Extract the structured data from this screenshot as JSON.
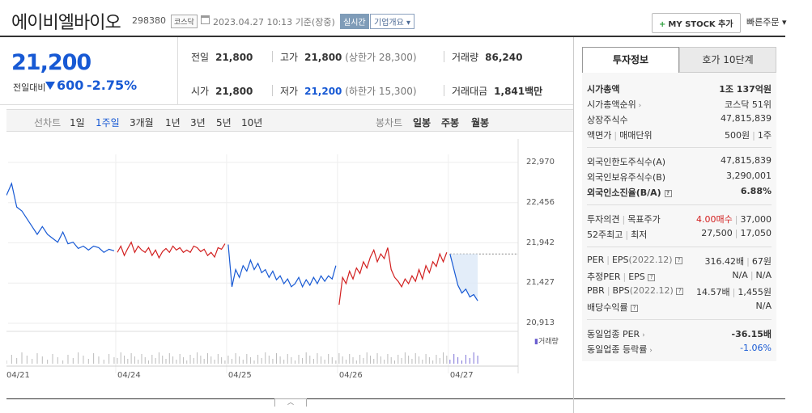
{
  "header": {
    "name": "에이비엘바이오",
    "code": "298380",
    "market": "코스닥",
    "datetime": "2023.04.27 10:13",
    "basis": "기준(장중)",
    "realtime": "실시간",
    "company_info": "기업개요",
    "mystock": "MY STOCK 추가",
    "quick_order": "빠른주문"
  },
  "price": {
    "current": "21,200",
    "diff_label": "전일대비",
    "diff": "600",
    "diff_pct": "-2.75%"
  },
  "stats": {
    "prev_close_label": "전일",
    "prev_close": "21,800",
    "high_label": "고가",
    "high": "21,800",
    "upper_limit": "(상한가 28,300)",
    "volume_label": "거래량",
    "volume": "86,240",
    "open_label": "시가",
    "open": "21,800",
    "low_label": "저가",
    "low": "21,200",
    "lower_limit": "(하한가 15,300)",
    "amount_label": "거래대금",
    "amount": "1,841",
    "amount_unit": "백만"
  },
  "period_bar": {
    "line_chart": "선차트",
    "periods": [
      "1일",
      "1주일",
      "3개월",
      "1년",
      "3년",
      "5년",
      "10년"
    ],
    "active": "1주일",
    "candle_chart": "봉차트",
    "candles": [
      "일봉",
      "주봉",
      "월봉"
    ]
  },
  "chart_data": {
    "type": "line",
    "y_ticks": [
      "22,970",
      "22,456",
      "21,942",
      "21,427",
      "20,913"
    ],
    "ylim": [
      20913,
      22970
    ],
    "x_ticks": [
      "04/21",
      "04/24",
      "04/25",
      "04/26",
      "04/27"
    ],
    "volume_label": "거래량",
    "reference_price": 21800,
    "series": [
      {
        "day": "04/21",
        "color": "#1759d4",
        "values": [
          22550,
          22700,
          22400,
          22350,
          22250,
          22150,
          22050,
          22150,
          22050,
          22000,
          21950,
          22080,
          21930,
          21950,
          21870,
          21900,
          21850,
          21900,
          21880,
          21820,
          21860,
          21840
        ]
      },
      {
        "day": "04/24",
        "color": "#d21f1f",
        "values": [
          21820,
          21900,
          21780,
          21870,
          21950,
          21820,
          21900,
          21850,
          21820,
          21880,
          21780,
          21850,
          21750,
          21830,
          21870,
          21820,
          21900,
          21850,
          21880,
          21820,
          21850,
          21820,
          21900,
          21880,
          21830,
          21860,
          21780,
          21820,
          21760,
          21880,
          21860,
          21930
        ]
      },
      {
        "day": "04/25",
        "color": "#1759d4",
        "values": [
          21920,
          21380,
          21600,
          21500,
          21650,
          21580,
          21720,
          21600,
          21680,
          21560,
          21600,
          21500,
          21580,
          21470,
          21520,
          21420,
          21480,
          21380,
          21420,
          21500,
          21380,
          21470,
          21400,
          21500,
          21420,
          21520,
          21450,
          21520,
          21480,
          21650
        ]
      },
      {
        "day": "04/26",
        "color": "#d21f1f",
        "values": [
          21150,
          21500,
          21420,
          21580,
          21480,
          21620,
          21550,
          21700,
          21620,
          21760,
          21850,
          21700,
          21800,
          21740,
          21880,
          21600,
          21500,
          21450,
          21380,
          21480,
          21420,
          21520,
          21450,
          21600,
          21480,
          21650,
          21560,
          21700,
          21640,
          21800,
          21700,
          21820
        ]
      },
      {
        "day": "04/27",
        "color": "#1759d4",
        "values": [
          21800,
          21600,
          21400,
          21300,
          21350,
          21250,
          21280,
          21200
        ]
      }
    ]
  },
  "tabs": {
    "invest": "투자정보",
    "orderbook": "호가 10단계"
  },
  "invest": {
    "market_cap_label": "시가총액",
    "market_cap": "1조 137억원",
    "cap_rank_label": "시가총액순위",
    "cap_rank": "코스닥 51위",
    "listed_label": "상장주식수",
    "listed": "47,815,839",
    "par_label": "액면가",
    "unit_label": "매매단위",
    "par": "500원",
    "unit": "1주",
    "foreign_limit_label": "외국인한도주식수(A)",
    "foreign_limit": "47,815,839",
    "foreign_hold_label": "외국인보유주식수(B)",
    "foreign_hold": "3,290,001",
    "foreign_rate_label": "외국인소진율(B/A)",
    "foreign_rate": "6.88%",
    "opinion_label": "투자의견",
    "target_label": "목표주가",
    "opinion": "4.00매수",
    "target": "37,000",
    "w52_high_label": "52주최고",
    "w52_low_label": "최저",
    "w52_high": "27,500",
    "w52_low": "17,050",
    "per_label": "PER",
    "eps_label": "EPS",
    "eps_year": "(2022.12)",
    "per": "316.42배",
    "eps": "67원",
    "est_per_label": "추정PER",
    "est_eps_label": "EPS",
    "est_per": "N/A",
    "est_eps": "N/A",
    "pbr_label": "PBR",
    "bps_label": "BPS",
    "bps_year": "(2022.12)",
    "pbr": "14.57배",
    "bps": "1,455원",
    "div_label": "배당수익률",
    "div": "N/A",
    "industry_per_label": "동일업종 PER",
    "industry_per": "-36.15배",
    "industry_rate_label": "동일업종 등락률",
    "industry_rate": "-1.06%"
  }
}
